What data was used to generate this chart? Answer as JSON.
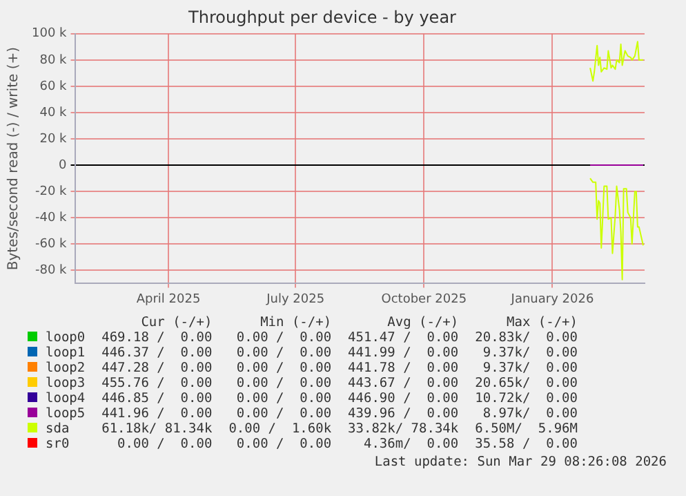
{
  "chart_data": {
    "type": "line",
    "title": "Throughput per device - by year",
    "ylabel": "Bytes/second read (-) / write (+)",
    "xlim": [
      "2025-01-24",
      "2026-03-08"
    ],
    "xticks": [
      {
        "value": "2025-04-01",
        "label": "April 2025"
      },
      {
        "value": "2025-07-01",
        "label": "July 2025"
      },
      {
        "value": "2025-10-01",
        "label": "October 2025"
      },
      {
        "value": "2026-01-01",
        "label": "January 2026"
      }
    ],
    "ylim": [
      -90000,
      100000
    ],
    "yticks": [
      {
        "value": -80000,
        "label": "-80 k"
      },
      {
        "value": -60000,
        "label": "-60 k"
      },
      {
        "value": -40000,
        "label": "-40 k"
      },
      {
        "value": -20000,
        "label": "-20 k"
      },
      0,
      {
        "value": 20000,
        "label": "20 k"
      },
      {
        "value": 40000,
        "label": "40 k"
      },
      {
        "value": 60000,
        "label": "60 k"
      },
      {
        "value": 80000,
        "label": "80 k"
      },
      {
        "value": 100000,
        "label": "100 k"
      }
    ],
    "grid": true,
    "legend": "bottom",
    "marker": "none",
    "line_style": "solid",
    "series": [
      {
        "name": "loop0",
        "color": "#00cc00"
      },
      {
        "name": "loop1",
        "color": "#0066b3"
      },
      {
        "name": "loop2",
        "color": "#ff8000"
      },
      {
        "name": "loop3",
        "color": "#ffcc00"
      },
      {
        "name": "loop4",
        "color": "#330099"
      },
      {
        "name": "loop5",
        "color": "#990099",
        "x": [
          "2026-01-28",
          "2026-03-07"
        ],
        "values": [
          0,
          0
        ]
      },
      {
        "name": "sda",
        "color": "#ccff00",
        "x": [
          "2026-01-28",
          "2026-01-30",
          "2026-01-31",
          "2026-02-02",
          "2026-02-03",
          "2026-02-04",
          "2026-02-05",
          "2026-02-07",
          "2026-02-09",
          "2026-02-10",
          "2026-02-12",
          "2026-02-13",
          "2026-02-15",
          "2026-02-16",
          "2026-02-18",
          "2026-02-19",
          "2026-02-20",
          "2026-02-22",
          "2026-02-24",
          "2026-02-26",
          "2026-02-27",
          "2026-03-01",
          "2026-03-03",
          "2026-03-04",
          "2026-03-07"
        ],
        "values": [
          74000,
          64000,
          71000,
          91000,
          76000,
          82000,
          71000,
          74000,
          73000,
          87000,
          74000,
          76000,
          73000,
          80000,
          78000,
          92000,
          76000,
          87000,
          83000,
          82000,
          80000,
          83000,
          94000,
          80000,
          80000
        ]
      },
      {
        "color": "#ccff00",
        "x": [
          "2026-01-28",
          "2026-01-30",
          "2026-02-01",
          "2026-02-02",
          "2026-02-03",
          "2026-02-04",
          "2026-02-05",
          "2026-02-07",
          "2026-02-09",
          "2026-02-10",
          "2026-02-12",
          "2026-02-13",
          "2026-02-15",
          "2026-02-16",
          "2026-02-18",
          "2026-02-19",
          "2026-02-20",
          "2026-02-21",
          "2026-02-23",
          "2026-02-24",
          "2026-02-26",
          "2026-02-27",
          "2026-03-01",
          "2026-03-02",
          "2026-03-03",
          "2026-03-04",
          "2026-03-07"
        ],
        "values": [
          -10000,
          -13000,
          -13000,
          -41000,
          -27000,
          -29000,
          -63000,
          -16000,
          -16000,
          -41000,
          -40000,
          -67000,
          -38000,
          -16000,
          -34000,
          -51000,
          -87000,
          -18000,
          -18000,
          -36000,
          -40000,
          -60000,
          -20000,
          -20000,
          -47000,
          -47000,
          -61000
        ]
      },
      {
        "name": "sr0",
        "color": "#ff0000"
      }
    ],
    "annotations": [
      "Cur (-/+)",
      "Min (-/+)",
      "Avg (-/+)",
      "Max (-/+)",
      "469.18 /  0.00",
      "0.00 /  0.00",
      "451.47 /  0.00",
      "20.83k/  0.00",
      "446.37 /  0.00",
      "0.00 /  0.00",
      "441.99 /  0.00",
      "9.37k/  0.00",
      "447.28 /  0.00",
      "0.00 /  0.00",
      "441.78 /  0.00",
      "9.37k/  0.00",
      "455.76 /  0.00",
      "0.00 /  0.00",
      "443.67 /  0.00",
      "20.65k/  0.00",
      "446.85 /  0.00",
      "0.00 /  0.00",
      "446.90 /  0.00",
      "10.72k/  0.00",
      "441.96 /  0.00",
      "0.00 /  0.00",
      "439.96 /  0.00",
      "8.97k/  0.00",
      "61.18k/ 81.34k",
      "0.00 /  1.60k",
      "33.82k/ 78.34k",
      "6.50M/  5.96M",
      "0.00 /  0.00",
      "0.00 /  0.00",
      "4.36m/  0.00",
      "35.58 /  0.00",
      "Last update: Sun Mar 29 08:26:08 2026"
    ]
  }
}
